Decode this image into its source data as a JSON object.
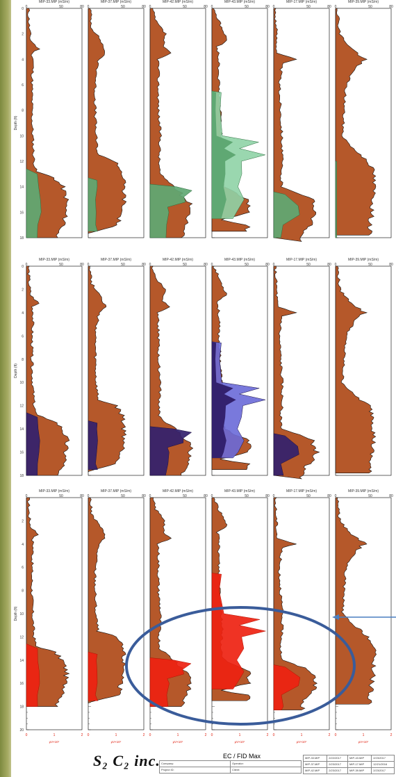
{
  "colors": {
    "ec_fill": "#b5582a",
    "fid_green": "#5fa873",
    "fid_green_light": "#8fd3a6",
    "fid_navy": "#33216e",
    "fid_blue": "#6a6ad8",
    "fid_red": "#ee2211",
    "annotation": "#3a5c9a",
    "sidebar": "#8a9548"
  },
  "panels": {
    "columns": [
      "MIP-33.MIP (mS/m)",
      "MIP-37.MIP (mS/m)",
      "MIP-42.MIP (mS/m)",
      "MIP-43.MIP (mS/m)",
      "MIP-17.MIP (mS/m)",
      "MIP-39.MIP (mS/m)"
    ],
    "x_ticks": [
      "0",
      "50",
      "80"
    ],
    "y_axis_label": "Depth (ft)",
    "depth_ticks": [
      "0",
      "2",
      "4",
      "6",
      "8",
      "10",
      "12",
      "14",
      "16",
      "18"
    ],
    "depth_ticks_bottom": [
      "2",
      "4",
      "6",
      "8",
      "10",
      "12",
      "14",
      "16",
      "18",
      "20"
    ],
    "fid_ticks": [
      "0",
      "1",
      "2"
    ],
    "fid_unit": "μV×10⁷",
    "fid_unit_first": "μV×10⁷"
  },
  "footer": {
    "logo": "S₂ C₂ inc.",
    "title": "EC / FID Max",
    "company_label": "Company:",
    "operator_label": "Operator:",
    "project_label": "Project ID:",
    "client_label": "Client:",
    "files": [
      {
        "name": "MIP-33.MIP",
        "date": "2/22/2017"
      },
      {
        "name": "MIP-43.MIP",
        "date": "2/23/2017"
      },
      {
        "name": "MIP-37.MIP",
        "date": "2/23/2017"
      },
      {
        "name": "MIP-17.MIP",
        "date": "12/21/2016"
      },
      {
        "name": "MIP-42.MIP",
        "date": "2/23/2017"
      },
      {
        "name": "MIP-39.MIP",
        "date": "2/23/2017"
      }
    ]
  }
}
